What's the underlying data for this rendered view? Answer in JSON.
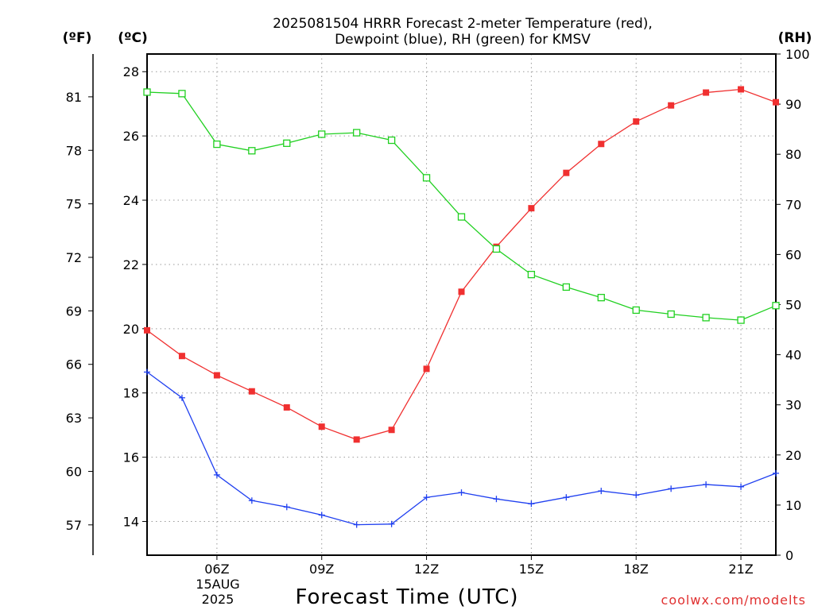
{
  "chart_data": {
    "type": "line",
    "title_lines": [
      "2025081504 HRRR Forecast 2-meter Temperature (red),",
      "Dewpoint (blue), RH (green) for KMSV"
    ],
    "xlabel": "Forecast Time (UTC)",
    "x_ticks": [
      "06Z",
      "09Z",
      "12Z",
      "15Z",
      "18Z",
      "21Z"
    ],
    "x_tick_hours": [
      6,
      9,
      12,
      15,
      18,
      21
    ],
    "x_date_lines": [
      "15AUG",
      "2025"
    ],
    "x_date_under": "06Z",
    "x_hours": [
      4,
      5,
      6,
      7,
      8,
      9,
      10,
      11,
      12,
      13,
      14,
      15,
      16,
      17,
      18,
      19,
      20,
      21,
      22
    ],
    "xlim": [
      4,
      22
    ],
    "left_axis_c": {
      "unit": "(ºC)",
      "ticks": [
        "28",
        "26",
        "24",
        "22",
        "20",
        "18",
        "16",
        "14"
      ],
      "lim": [
        12.95,
        28.55
      ]
    },
    "left_axis_f": {
      "unit": "(ºF)",
      "ticks": [
        "81",
        "78",
        "75",
        "72",
        "69",
        "66",
        "63",
        "60",
        "57"
      ],
      "lim": [
        55.3,
        83.4
      ]
    },
    "right_axis_rh": {
      "unit": "(RH)",
      "ticks": [
        "100",
        "90",
        "80",
        "70",
        "60",
        "50",
        "40",
        "30",
        "20",
        "10",
        "0"
      ],
      "lim": [
        0,
        100
      ]
    },
    "grid": true,
    "series": [
      {
        "name": "Temperature",
        "color": "#f03030",
        "marker": "filled-square",
        "axis": "celsius",
        "values": [
          19.95,
          19.15,
          18.55,
          18.05,
          17.55,
          16.95,
          16.55,
          16.85,
          18.75,
          21.15,
          22.55,
          23.75,
          24.85,
          25.75,
          26.45,
          26.95,
          27.35,
          27.45,
          27.05
        ]
      },
      {
        "name": "Dewpoint",
        "color": "#2040f0",
        "marker": "plus",
        "axis": "celsius",
        "values": [
          18.65,
          17.85,
          15.45,
          14.65,
          14.45,
          14.2,
          13.9,
          13.92,
          14.75,
          14.9,
          14.7,
          14.55,
          14.75,
          14.95,
          14.82,
          15.02,
          15.15,
          15.08,
          15.5
        ]
      },
      {
        "name": "RH",
        "color": "#20d020",
        "marker": "open-square",
        "axis": "rh",
        "values": [
          92.4,
          92.1,
          82.0,
          80.7,
          82.2,
          84.0,
          84.3,
          82.8,
          75.3,
          67.5,
          61.1,
          56.0,
          53.5,
          51.4,
          48.9,
          48.1,
          47.4,
          46.9,
          49.8
        ]
      }
    ]
  },
  "credit": "coolwx.com/modelts"
}
